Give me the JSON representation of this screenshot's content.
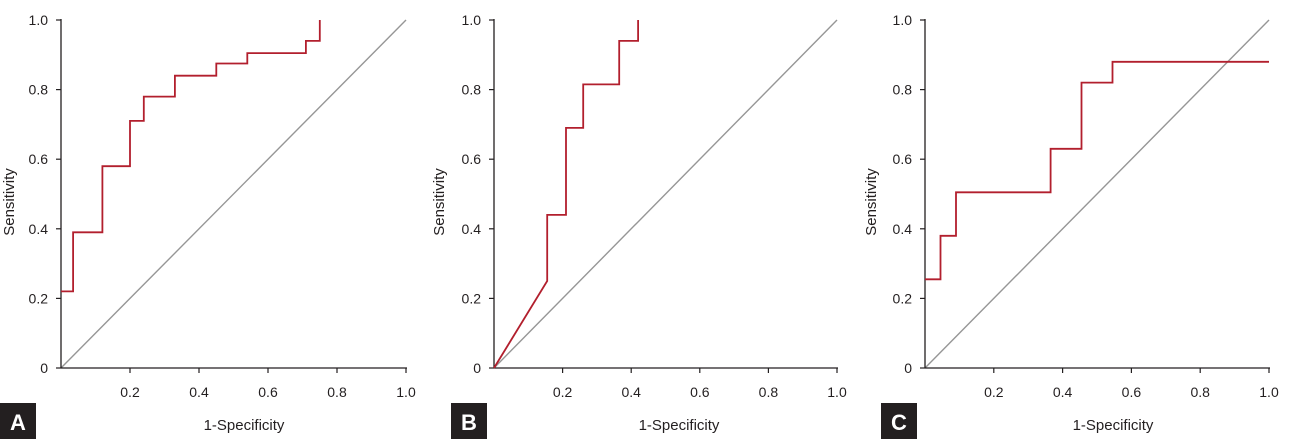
{
  "chart_data": [
    {
      "type": "line",
      "panel_label": "A",
      "xlabel": "1-Specificity",
      "ylabel": "Sensitivity",
      "xlim": [
        0,
        1
      ],
      "ylim": [
        0,
        1
      ],
      "x_ticks": [
        "0.2",
        "0.4",
        "0.6",
        "0.8",
        "1.0"
      ],
      "y_ticks": [
        "0",
        "0.2",
        "0.4",
        "0.6",
        "0.8",
        "1.0"
      ],
      "grid": false,
      "reference_line": [
        [
          0,
          0
        ],
        [
          1,
          1
        ]
      ],
      "series": [
        {
          "color": "#b21f2d",
          "points": [
            [
              0,
              0.22
            ],
            [
              0.035,
              0.22
            ],
            [
              0.035,
              0.39
            ],
            [
              0.12,
              0.39
            ],
            [
              0.12,
              0.58
            ],
            [
              0.2,
              0.58
            ],
            [
              0.2,
              0.71
            ],
            [
              0.24,
              0.71
            ],
            [
              0.24,
              0.78
            ],
            [
              0.33,
              0.78
            ],
            [
              0.33,
              0.84
            ],
            [
              0.45,
              0.84
            ],
            [
              0.45,
              0.875
            ],
            [
              0.54,
              0.875
            ],
            [
              0.54,
              0.905
            ],
            [
              0.71,
              0.905
            ],
            [
              0.71,
              0.94
            ],
            [
              0.75,
              0.94
            ],
            [
              0.75,
              1.0
            ]
          ]
        }
      ]
    },
    {
      "type": "line",
      "panel_label": "B",
      "xlabel": "1-Specificity",
      "ylabel": "Sensitivity",
      "xlim": [
        0,
        1
      ],
      "ylim": [
        0,
        1
      ],
      "x_ticks": [
        "0.2",
        "0.4",
        "0.6",
        "0.8",
        "1.0"
      ],
      "y_ticks": [
        "0",
        "0.2",
        "0.4",
        "0.6",
        "0.8",
        "1.0"
      ],
      "grid": false,
      "reference_line": [
        [
          0,
          0
        ],
        [
          1,
          1
        ]
      ],
      "series": [
        {
          "color": "#b21f2d",
          "points": [
            [
              0,
              0
            ],
            [
              0.155,
              0.25
            ],
            [
              0.155,
              0.44
            ],
            [
              0.21,
              0.44
            ],
            [
              0.21,
              0.69
            ],
            [
              0.26,
              0.69
            ],
            [
              0.26,
              0.815
            ],
            [
              0.365,
              0.815
            ],
            [
              0.365,
              0.94
            ],
            [
              0.42,
              0.94
            ],
            [
              0.42,
              1.0
            ]
          ]
        }
      ]
    },
    {
      "type": "line",
      "panel_label": "C",
      "xlabel": "1-Specificity",
      "ylabel": "Sensitivity",
      "xlim": [
        0,
        1
      ],
      "ylim": [
        0,
        1
      ],
      "x_ticks": [
        "0.2",
        "0.4",
        "0.6",
        "0.8",
        "1.0"
      ],
      "y_ticks": [
        "0",
        "0.2",
        "0.4",
        "0.6",
        "0.8",
        "1.0"
      ],
      "grid": false,
      "reference_line": [
        [
          0,
          0
        ],
        [
          1,
          1
        ]
      ],
      "series": [
        {
          "color": "#b21f2d",
          "points": [
            [
              0,
              0.255
            ],
            [
              0.045,
              0.255
            ],
            [
              0.045,
              0.38
            ],
            [
              0.09,
              0.38
            ],
            [
              0.09,
              0.505
            ],
            [
              0.365,
              0.505
            ],
            [
              0.365,
              0.63
            ],
            [
              0.455,
              0.63
            ],
            [
              0.455,
              0.82
            ],
            [
              0.545,
              0.82
            ],
            [
              0.545,
              0.88
            ],
            [
              1.0,
              0.88
            ]
          ]
        }
      ]
    }
  ]
}
